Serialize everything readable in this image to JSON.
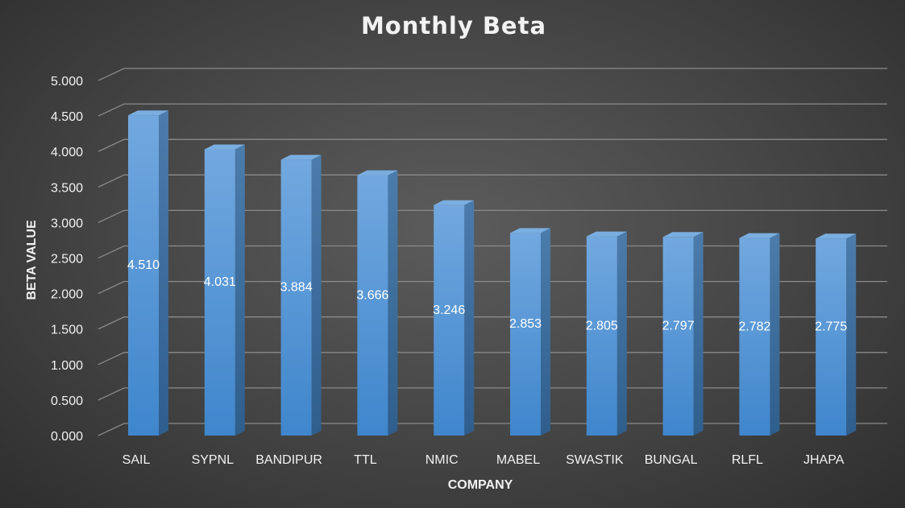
{
  "chart_data": {
    "type": "bar",
    "title": "Monthly Beta",
    "xlabel": "COMPANY",
    "ylabel": "BETA VALUE",
    "ylim": [
      0,
      5
    ],
    "yticks": [
      "0.000",
      "0.500",
      "1.000",
      "1.500",
      "2.000",
      "2.500",
      "3.000",
      "3.500",
      "4.000",
      "4.500",
      "5.000"
    ],
    "categories": [
      "SAIL",
      "SYPNL",
      "BANDIPUR",
      "TTL",
      "NMIC",
      "MABEL",
      "SWASTIK",
      "BUNGAL",
      "RLFL",
      "JHAPA"
    ],
    "values": [
      4.51,
      4.031,
      3.884,
      3.666,
      3.246,
      2.853,
      2.805,
      2.797,
      2.782,
      2.775
    ],
    "data_labels": [
      "4.510",
      "4.031",
      "3.884",
      "3.666",
      "3.246",
      "2.853",
      "2.805",
      "2.797",
      "2.782",
      "2.775"
    ],
    "grid": true,
    "legend": "none",
    "colors": {
      "bar_front": "#5b9bd5",
      "bar_side": "#3d6f9f",
      "bar_top": "#7aaee0"
    }
  }
}
